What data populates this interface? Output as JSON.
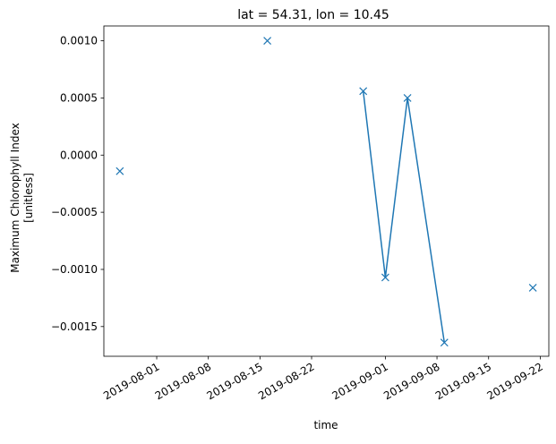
{
  "chart_data": {
    "type": "line",
    "title": "lat = 54.31, lon = 10.45",
    "xlabel": "time",
    "ylabel_lines": [
      "Maximum Chlorophyll Index",
      "[unitless]"
    ],
    "x_type": "date",
    "xlim": [
      "2019-07-24T20:00",
      "2019-09-23T04:00"
    ],
    "ylim": [
      -0.00176,
      0.00113
    ],
    "x_ticks": [
      {
        "date": "2019-08-01",
        "label": "2019-08-01"
      },
      {
        "date": "2019-08-08",
        "label": "2019-08-08"
      },
      {
        "date": "2019-08-15",
        "label": "2019-08-15"
      },
      {
        "date": "2019-08-22",
        "label": "2019-08-22"
      },
      {
        "date": "2019-09-01",
        "label": "2019-09-01"
      },
      {
        "date": "2019-09-08",
        "label": "2019-09-08"
      },
      {
        "date": "2019-09-15",
        "label": "2019-09-15"
      },
      {
        "date": "2019-09-22",
        "label": "2019-09-22"
      }
    ],
    "y_ticks": [
      {
        "value": 0.001,
        "label": "0.0010"
      },
      {
        "value": 0.0005,
        "label": "0.0005"
      },
      {
        "value": 0.0,
        "label": "0.0000"
      },
      {
        "value": -0.0005,
        "label": "−0.0005"
      },
      {
        "value": -0.001,
        "label": "−0.0010"
      },
      {
        "value": -0.0015,
        "label": "−0.0015"
      }
    ],
    "series": [
      {
        "marker": "x",
        "color": "#1f77b4",
        "points": [
          {
            "date": "2019-07-27",
            "y": -0.00014
          },
          {
            "date": "2019-08-16",
            "y": 0.001
          },
          {
            "date": "2019-08-29",
            "y": 0.00056,
            "connected": true
          },
          {
            "date": "2019-09-01",
            "y": -0.00107,
            "connected": true
          },
          {
            "date": "2019-09-04",
            "y": 0.0005,
            "connected": true
          },
          {
            "date": "2019-09-09",
            "y": -0.00164,
            "connected": true
          },
          {
            "date": "2019-09-21",
            "y": -0.00116
          }
        ]
      }
    ],
    "grid": false,
    "legend": "none"
  }
}
